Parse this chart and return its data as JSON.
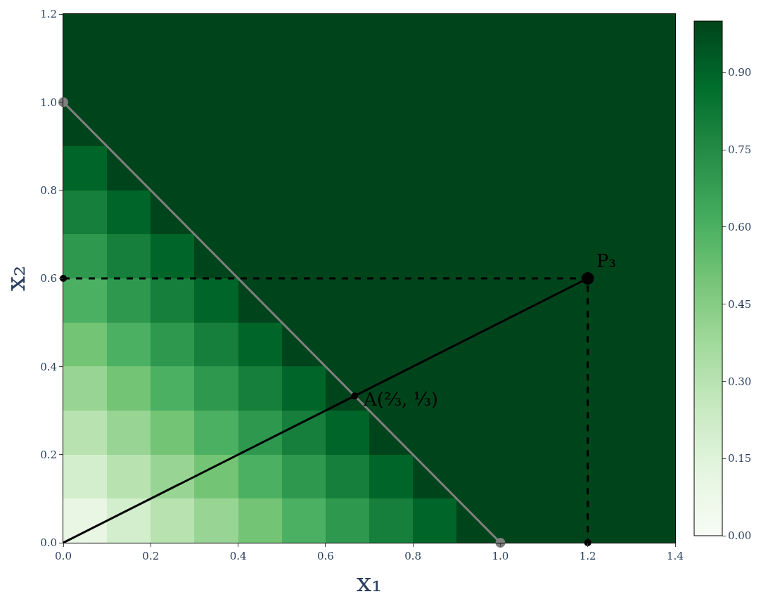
{
  "chart_data": {
    "type": "heatmap",
    "xlabel": "x₁",
    "ylabel": "x₂",
    "x": [
      0.05,
      0.15,
      0.25,
      0.35,
      0.45,
      0.55,
      0.65,
      0.75,
      0.85,
      0.95,
      1.05,
      1.15,
      1.25,
      1.35
    ],
    "y": [
      1.15,
      1.05,
      0.95,
      0.85,
      0.75,
      0.65,
      0.55,
      0.45,
      0.35,
      0.25,
      0.15,
      0.05
    ],
    "cells": [
      [
        1,
        1,
        1,
        1,
        1,
        1,
        1,
        1,
        1,
        1,
        1,
        1,
        1,
        1
      ],
      [
        1,
        1,
        1,
        1,
        1,
        1,
        1,
        1,
        1,
        1,
        1,
        1,
        1,
        1
      ],
      [
        1,
        1,
        1,
        1,
        1,
        1,
        1,
        1,
        1,
        1,
        1,
        1,
        1,
        1
      ],
      [
        0.9,
        1,
        1,
        1,
        1,
        1,
        1,
        1,
        1,
        1,
        1,
        1,
        1,
        1
      ],
      [
        0.8,
        0.9,
        1,
        1,
        1,
        1,
        1,
        1,
        1,
        1,
        1,
        1,
        1,
        1
      ],
      [
        0.7,
        0.8,
        0.9,
        1,
        1,
        1,
        1,
        1,
        1,
        1,
        1,
        1,
        1,
        1
      ],
      [
        0.6,
        0.7,
        0.8,
        0.9,
        1,
        1,
        1,
        1,
        1,
        1,
        1,
        1,
        1,
        1
      ],
      [
        0.5,
        0.6,
        0.7,
        0.8,
        0.9,
        1,
        1,
        1,
        1,
        1,
        1,
        1,
        1,
        1
      ],
      [
        0.4,
        0.5,
        0.6,
        0.7,
        0.8,
        0.9,
        1,
        1,
        1,
        1,
        1,
        1,
        1,
        1
      ],
      [
        0.3,
        0.4,
        0.5,
        0.6,
        0.7,
        0.8,
        0.9,
        1,
        1,
        1,
        1,
        1,
        1,
        1
      ],
      [
        0.2,
        0.3,
        0.4,
        0.5,
        0.6,
        0.7,
        0.8,
        0.9,
        1,
        1,
        1,
        1,
        1,
        1
      ],
      [
        0.1,
        0.2,
        0.3,
        0.4,
        0.5,
        0.6,
        0.7,
        0.8,
        0.9,
        1,
        1,
        1,
        1,
        1
      ]
    ],
    "clim": [
      0,
      1
    ],
    "cticks": [
      {
        "value": 0,
        "label": "0.00"
      },
      {
        "value": 0.15,
        "label": "0.15"
      },
      {
        "value": 0.3,
        "label": "0.30"
      },
      {
        "value": 0.45,
        "label": "0.45"
      },
      {
        "value": 0.6,
        "label": "0.60"
      },
      {
        "value": 0.75,
        "label": "0.75"
      },
      {
        "value": 0.9,
        "label": "0.90"
      }
    ],
    "xlim": [
      0,
      1.4
    ],
    "xticks": [
      {
        "value": 0,
        "label": "0.0"
      },
      {
        "value": 0.2,
        "label": "0.2"
      },
      {
        "value": 0.4,
        "label": "0.4"
      },
      {
        "value": 0.6,
        "label": "0.6"
      },
      {
        "value": 0.8,
        "label": "0.8"
      },
      {
        "value": 1,
        "label": "1.0"
      },
      {
        "value": 1.2,
        "label": "1.2"
      },
      {
        "value": 1.4,
        "label": "1.4"
      }
    ],
    "ylim": [
      0,
      1.2
    ],
    "yticks": [
      {
        "value": 0,
        "label": "0.0"
      },
      {
        "value": 0.2,
        "label": "0.2"
      },
      {
        "value": 0.4,
        "label": "0.4"
      },
      {
        "value": 0.6,
        "label": "0.6"
      },
      {
        "value": 0.8,
        "label": "0.8"
      },
      {
        "value": 1,
        "label": "1.0"
      },
      {
        "value": 1.2,
        "label": "1.2"
      }
    ],
    "series": [
      {
        "type": "line",
        "x": [
          0,
          1
        ],
        "values": [
          1,
          0
        ],
        "color": "#808080",
        "marker": "circle",
        "line_style": "solid"
      },
      {
        "type": "line",
        "x": [
          0,
          1.2
        ],
        "values": [
          0,
          0.6
        ],
        "color": "#000000",
        "marker": "none",
        "line_style": "solid"
      },
      {
        "type": "line",
        "x": [
          0,
          1.2,
          1.2
        ],
        "values": [
          0.6,
          0.6,
          0
        ],
        "color": "#000000",
        "marker": "none",
        "line_style": "dashed"
      },
      {
        "type": "scatter",
        "x": [
          0,
          1.2,
          0.6667
        ],
        "values": [
          0.6,
          0,
          0.333
        ],
        "color": "#000000",
        "marker": "circle"
      },
      {
        "type": "scatter",
        "x": [
          1.2
        ],
        "values": [
          0.6
        ],
        "color": "#000000",
        "marker": "circle"
      }
    ],
    "annotations": [
      {
        "text": "P₃",
        "x": 1.2,
        "y": 0.6
      },
      {
        "text": "A(⅔, ⅓)",
        "x": 0.6667,
        "y": 0.3333
      }
    ]
  }
}
